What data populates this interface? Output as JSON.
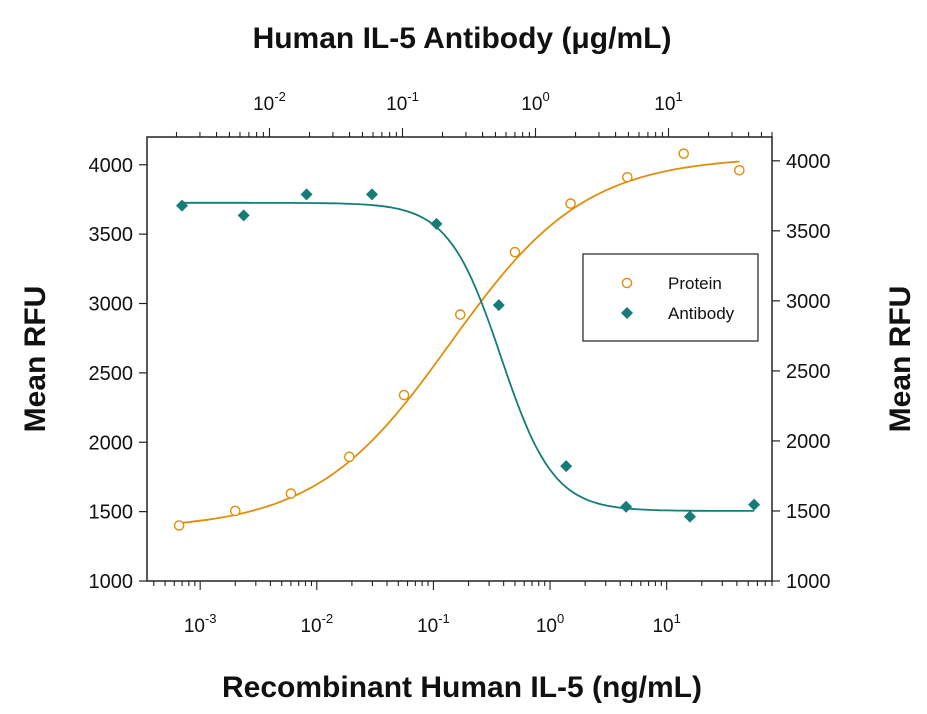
{
  "chart_data": {
    "type": "scatter",
    "title": "Human IL-5 Antibody (μg/mL)",
    "xlabel": "Recombinant Human IL-5 (ng/mL)",
    "ylabel_left": "Mean RFU",
    "ylabel_right": "Mean RFU",
    "x_scale": "log",
    "x_bottom_range": [
      0.00035,
      80
    ],
    "x_bottom_tick_labels": [
      {
        "base": "10",
        "exp": "-3"
      },
      {
        "base": "10",
        "exp": "-2"
      },
      {
        "base": "10",
        "exp": "-1"
      },
      {
        "base": "10",
        "exp": "0"
      },
      {
        "base": "10",
        "exp": "1"
      }
    ],
    "x_top_range": [
      0.0012,
      60
    ],
    "x_top_tick_labels": [
      {
        "base": "10",
        "exp": "-2"
      },
      {
        "base": "10",
        "exp": "-1"
      },
      {
        "base": "10",
        "exp": "0"
      },
      {
        "base": "10",
        "exp": "1"
      }
    ],
    "y_left_range": [
      1000,
      4200
    ],
    "y_left_ticks": [
      "1000",
      "1500",
      "2000",
      "2500",
      "3000",
      "3500",
      "4000"
    ],
    "y_right_range": [
      1000,
      4170
    ],
    "y_right_ticks": [
      "1000",
      "1500",
      "2000",
      "2500",
      "3000",
      "3500",
      "4000"
    ],
    "legend_position": "right-middle",
    "series": [
      {
        "name": "Protein",
        "axis": "bottom-x / left-y",
        "marker": "open-circle",
        "color": "#E08E0B",
        "x": [
          0.00066,
          0.002,
          0.006,
          0.019,
          0.056,
          0.17,
          0.5,
          1.5,
          4.6,
          14,
          42
        ],
        "y": [
          1400,
          1505,
          1630,
          1895,
          2340,
          2920,
          3370,
          3720,
          3910,
          4080,
          3960
        ],
        "fit": {
          "bottom": 1370,
          "top": 4060,
          "ec50": 0.14,
          "hill": 0.75
        }
      },
      {
        "name": "Antibody",
        "axis": "top-x / right-y",
        "marker": "filled-diamond",
        "color": "#157C78",
        "x": [
          0.0022,
          0.0064,
          0.019,
          0.059,
          0.18,
          0.53,
          1.7,
          4.8,
          14.5,
          44
        ],
        "y": [
          3680,
          3610,
          3760,
          3760,
          3550,
          2970,
          1820,
          1530,
          1460,
          1545
        ],
        "fit": {
          "bottom": 1500,
          "top": 3700,
          "ic50": 0.55,
          "hill": 2.2
        }
      }
    ]
  }
}
